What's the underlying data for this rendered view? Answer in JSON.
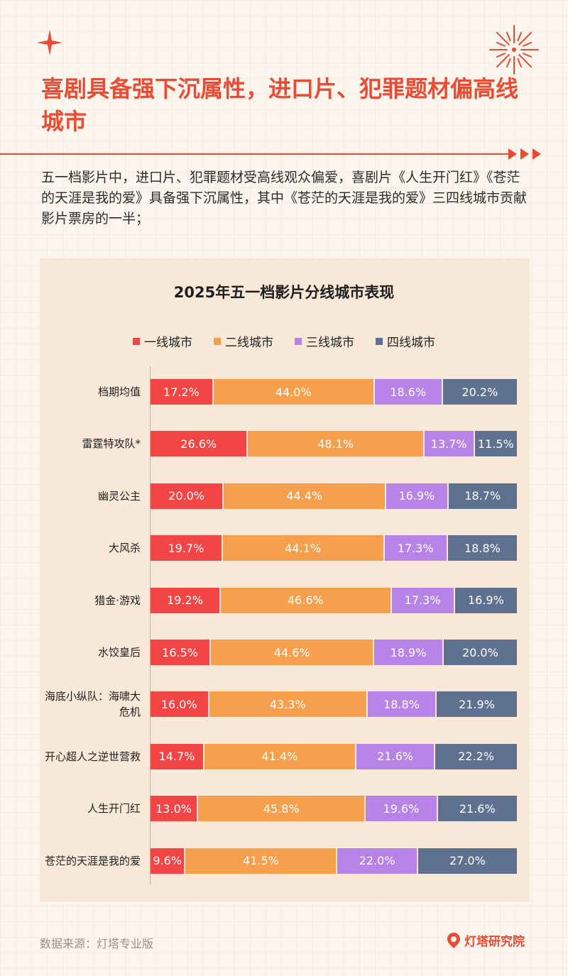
{
  "header": {
    "title": "喜剧具备强下沉属性，进口片、犯罪题材偏高线城市",
    "intro": "五一档影片中，进口片、犯罪题材受高线观众偏爱，喜剧片《人生开门红》《苍茫的天涯是我的爱》具备强下沉属性，其中《苍茫的天涯是我的爱》三四线城市贡献影片票房的一半；"
  },
  "colors": {
    "accent": "#ea4c33",
    "tier1": "#f24545",
    "tier2": "#f6a04d",
    "tier3": "#b783e6",
    "tier4": "#5f7190"
  },
  "chart_data": {
    "type": "bar",
    "orientation": "horizontal",
    "stacked": true,
    "percent": true,
    "title": "2025年五一档影片分线城市表现",
    "categories": [
      "档期均值",
      "雷霆特攻队*",
      "幽灵公主",
      "大风杀",
      "猎金·游戏",
      "水饺皇后",
      "海底小纵队：海啸大危机",
      "开心超人之逆世营救",
      "人生开门红",
      "苍茫的天涯是我的爱"
    ],
    "series": [
      {
        "name": "一线城市",
        "values": [
          17.2,
          26.6,
          20.0,
          19.7,
          19.2,
          16.5,
          16.0,
          14.7,
          13.0,
          9.6
        ]
      },
      {
        "name": "二线城市",
        "values": [
          44.0,
          48.1,
          44.4,
          44.1,
          46.6,
          44.6,
          43.3,
          41.4,
          45.8,
          41.5
        ]
      },
      {
        "name": "三线城市",
        "values": [
          18.6,
          13.7,
          16.9,
          17.3,
          17.3,
          18.9,
          18.8,
          21.6,
          19.6,
          22.0
        ]
      },
      {
        "name": "四线城市",
        "values": [
          20.2,
          11.5,
          18.7,
          18.8,
          16.9,
          20.0,
          21.9,
          22.2,
          21.6,
          27.0
        ]
      }
    ],
    "legend_position": "top",
    "grid": false
  },
  "footer": {
    "source": "数据来源：灯塔专业版",
    "brand": "灯塔研究院"
  }
}
